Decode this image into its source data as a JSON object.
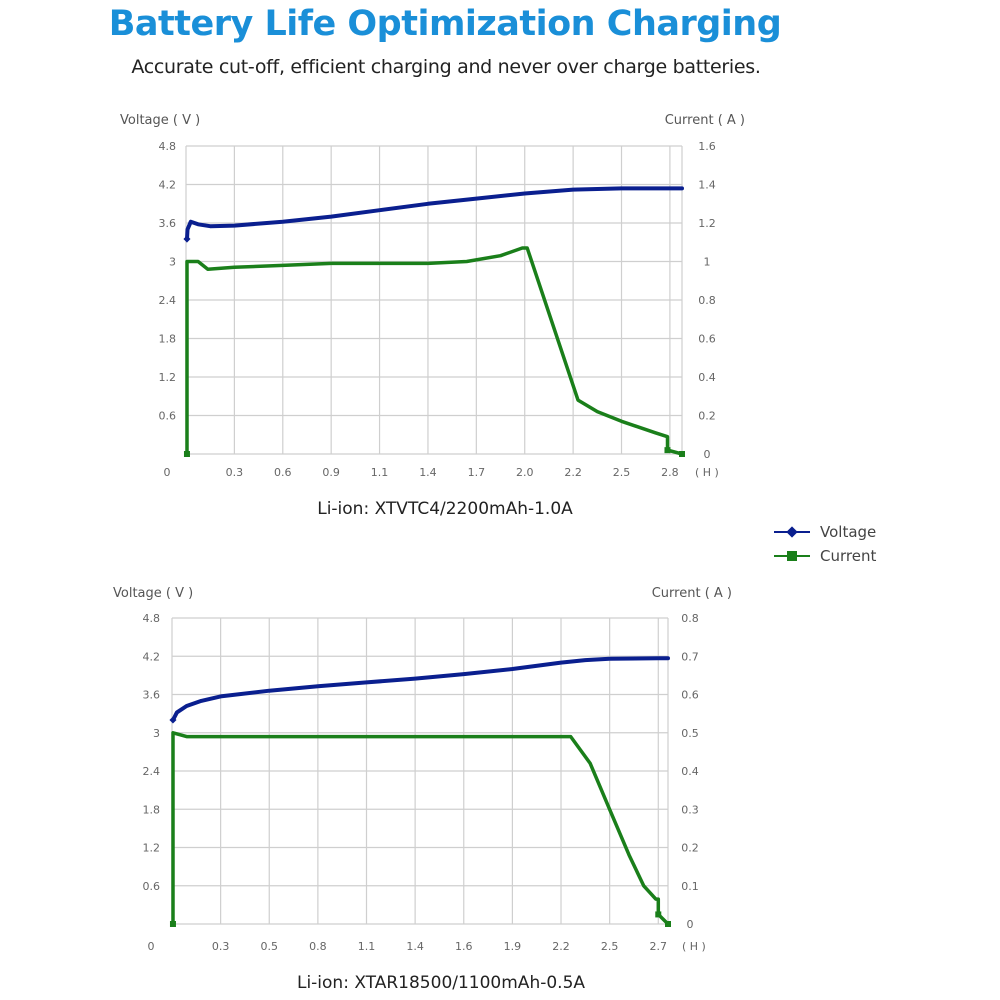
{
  "header": {
    "title": "Battery Life Optimization Charging",
    "subtitle": "Accurate cut-off, efficient charging and never over charge batteries."
  },
  "legend": {
    "voltage": "Voltage",
    "current": "Current",
    "voltage_color": "#0a1f8f",
    "current_color": "#1a7f1a"
  },
  "chart_data": [
    {
      "type": "line",
      "title": "Li-ion: XTVTC4/2200mAh-1.0A",
      "ylabel_left": "Voltage ( V )",
      "ylabel_right": "Current ( A )",
      "xlabel": "( H )",
      "x_ticks": [
        "0",
        "0.3",
        "0.6",
        "0.9",
        "1.1",
        "1.4",
        "1.7",
        "2.0",
        "2.2",
        "2.5",
        "2.8"
      ],
      "y_left_ticks": [
        "4.8",
        "4.2",
        "3.6",
        "3",
        "2.4",
        "1.8",
        "1.2",
        "0.6"
      ],
      "y_right_ticks": [
        "1.6",
        "1.4",
        "1.2",
        "1",
        "0.8",
        "0.6",
        "0.4",
        "0.2",
        "0"
      ],
      "ylim_left": [
        0,
        4.8
      ],
      "ylim_right": [
        0,
        1.6
      ],
      "xlim_index": [
        0,
        10.25
      ],
      "grid": true,
      "legend": "right",
      "series": [
        {
          "name": "Voltage",
          "axis": "left",
          "x_index": [
            0.02,
            0.03,
            0.1,
            0.25,
            0.5,
            1,
            2,
            3,
            4,
            5,
            6,
            7,
            8,
            9,
            10,
            10.25
          ],
          "values": [
            3.35,
            3.5,
            3.62,
            3.58,
            3.55,
            3.56,
            3.62,
            3.7,
            3.8,
            3.9,
            3.98,
            4.06,
            4.12,
            4.14,
            4.14,
            4.14
          ]
        },
        {
          "name": "Current",
          "axis": "right",
          "x_index": [
            0.02,
            0.02,
            0.25,
            0.45,
            1,
            2,
            3,
            4,
            5,
            5.8,
            6.5,
            6.95,
            7.05,
            8.1,
            8.5,
            9,
            9.7,
            9.95,
            9.95,
            10.25
          ],
          "values": [
            0,
            1.0,
            1.0,
            0.96,
            0.97,
            0.98,
            0.99,
            0.99,
            0.99,
            1.0,
            1.03,
            1.07,
            1.07,
            0.28,
            0.22,
            0.17,
            0.11,
            0.09,
            0.02,
            0
          ]
        }
      ]
    },
    {
      "type": "line",
      "title": "Li-ion: XTAR18500/1100mAh-0.5A",
      "ylabel_left": "Voltage ( V )",
      "ylabel_right": "Current ( A )",
      "xlabel": "( H )",
      "x_ticks": [
        "0",
        "0.3",
        "0.5",
        "0.8",
        "1.1",
        "1.4",
        "1.6",
        "1.9",
        "2.2",
        "2.5",
        "2.7"
      ],
      "y_left_ticks": [
        "4.8",
        "4.2",
        "3.6",
        "3",
        "2.4",
        "1.8",
        "1.2",
        "0.6"
      ],
      "y_right_ticks": [
        "0.8",
        "0.7",
        "0.6",
        "0.5",
        "0.4",
        "0.3",
        "0.2",
        "0.1",
        "0"
      ],
      "ylim_left": [
        0,
        4.8
      ],
      "ylim_right": [
        0,
        0.8
      ],
      "xlim_index": [
        0,
        10.2
      ],
      "grid": true,
      "legend": "right",
      "series": [
        {
          "name": "Voltage",
          "axis": "left",
          "x_index": [
            0.02,
            0.1,
            0.3,
            0.6,
            1,
            2,
            3,
            4,
            5,
            6,
            7,
            8,
            8.5,
            9,
            10,
            10.2
          ],
          "values": [
            3.2,
            3.32,
            3.42,
            3.5,
            3.57,
            3.66,
            3.73,
            3.79,
            3.85,
            3.92,
            4.0,
            4.1,
            4.14,
            4.16,
            4.17,
            4.17
          ]
        },
        {
          "name": "Current",
          "axis": "right",
          "x_index": [
            0.02,
            0.02,
            0.3,
            1,
            2,
            3,
            4,
            5,
            6,
            7,
            8,
            8.2,
            8.6,
            9,
            9.4,
            9.7,
            9.95,
            10.0,
            10.0,
            10.2
          ],
          "values": [
            0,
            0.5,
            0.49,
            0.49,
            0.49,
            0.49,
            0.49,
            0.49,
            0.49,
            0.49,
            0.49,
            0.49,
            0.42,
            0.3,
            0.18,
            0.1,
            0.065,
            0.065,
            0.025,
            0
          ]
        }
      ]
    }
  ]
}
